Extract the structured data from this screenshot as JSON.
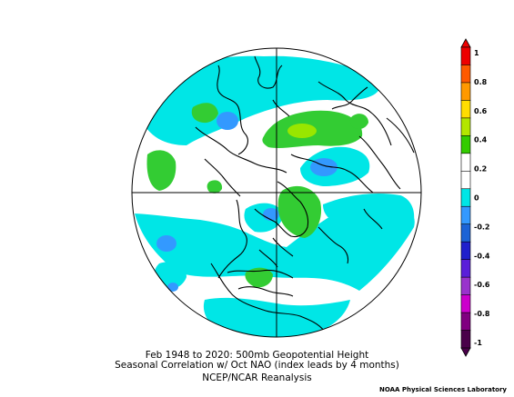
{
  "caption": {
    "line1": "Feb 1948 to 2020: 500mb Geopotential Height",
    "line2": "Seasonal Correlation w/ Oct NAO (index leads by 4 months)",
    "line3": "NCEP/NCAR Reanalysis"
  },
  "credit": "NOAA Physical Sciences Laboratory",
  "colorbar": {
    "tick_labels": [
      "1",
      "0.8",
      "0.6",
      "0.4",
      "0.2",
      "0",
      "-0.2",
      "-0.4",
      "-0.6",
      "-0.8",
      "-1"
    ],
    "colors": [
      "#ee0000",
      "#ff5a00",
      "#ff9900",
      "#ffdd00",
      "#b3e600",
      "#33cc00",
      "#ffffff",
      "#ffffff",
      "#00e6e6",
      "#3399ff",
      "#1b63d6",
      "#2020cc",
      "#5a1fd9",
      "#9933cc",
      "#cc00cc",
      "#800080",
      "#4a004a"
    ]
  },
  "colors": {
    "positive_weak": "#33cc33",
    "positive_mid": "#99e600",
    "negative_weak": "#00e6e6",
    "negative_mid": "#3399ff",
    "coast": "#000000"
  }
}
